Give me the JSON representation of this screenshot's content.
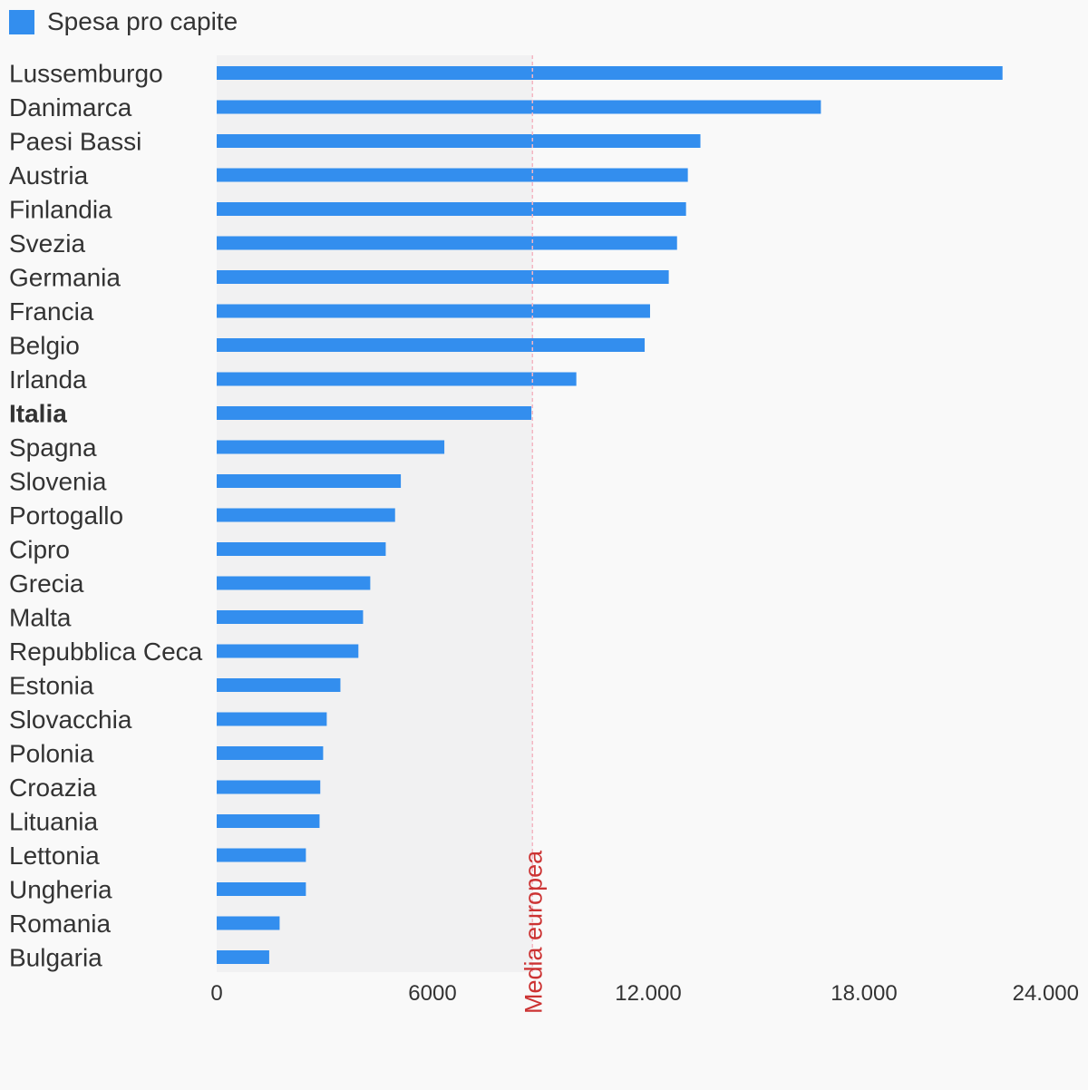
{
  "legend": {
    "label": "Spesa pro capite",
    "color": "#338eee"
  },
  "chart_data": {
    "type": "bar",
    "orientation": "horizontal",
    "categories": [
      "Lussemburgo",
      "Danimarca",
      "Paesi Bassi",
      "Austria",
      "Finlandia",
      "Svezia",
      "Germania",
      "Francia",
      "Belgio",
      "Irlanda",
      "Italia",
      "Spagna",
      "Slovenia",
      "Portogallo",
      "Cipro",
      "Grecia",
      "Malta",
      "Repubblica Ceca",
      "Estonia",
      "Slovacchia",
      "Polonia",
      "Croazia",
      "Lituania",
      "Lettonia",
      "Ungheria",
      "Romania",
      "Bulgaria"
    ],
    "highlight_category": "Italia",
    "series": [
      {
        "name": "Spesa pro capite",
        "color": "#338eee",
        "values": [
          21850,
          16800,
          13450,
          13100,
          13050,
          12800,
          12570,
          12050,
          11900,
          10000,
          8750,
          6330,
          5120,
          4960,
          4700,
          4270,
          4070,
          3940,
          3440,
          3060,
          2960,
          2880,
          2860,
          2480,
          2480,
          1750,
          1460
        ]
      }
    ],
    "xlim": [
      0,
      24000
    ],
    "x_ticks": [
      "0",
      "6000",
      "12.000",
      "18.000",
      "24.000"
    ],
    "x_tick_values": [
      0,
      6000,
      12000,
      18000,
      24000
    ],
    "reference_line": {
      "label": "Media europea",
      "value": 8780,
      "color": "#cc3333"
    },
    "shaded_band": {
      "from": 0,
      "to": 8780,
      "color": "#f1f1f2"
    },
    "grid": false,
    "legend_position": "top-left"
  }
}
